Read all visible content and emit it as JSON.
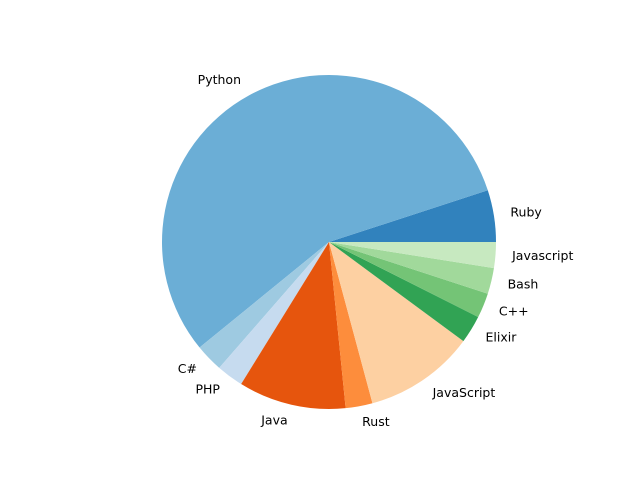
{
  "chart_data": {
    "type": "pie",
    "start_angle_deg": 0,
    "direction": "counterclockwise",
    "slices": [
      {
        "label": "Ruby",
        "value": 5.2,
        "color": "#3182bd"
      },
      {
        "label": "Python",
        "value": 58.0,
        "color": "#6baed6"
      },
      {
        "label": "C#",
        "value": 2.8,
        "color": "#9ecae1"
      },
      {
        "label": "PHP",
        "value": 2.7,
        "color": "#c6dbef"
      },
      {
        "label": "Java",
        "value": 10.8,
        "color": "#e6550d"
      },
      {
        "label": "Rust",
        "value": 2.7,
        "color": "#fd8d3c"
      },
      {
        "label": "JavaScript",
        "value": 11.1,
        "color": "#fdd0a2"
      },
      {
        "label": "Elixir",
        "value": 2.8,
        "color": "#31a354"
      },
      {
        "label": "C++",
        "value": 2.5,
        "color": "#74c476"
      },
      {
        "label": "Bash",
        "value": 2.6,
        "color": "#a1d99b"
      },
      {
        "label": "Javascript",
        "value": 2.6,
        "color": "#c7e9c0"
      }
    ]
  }
}
